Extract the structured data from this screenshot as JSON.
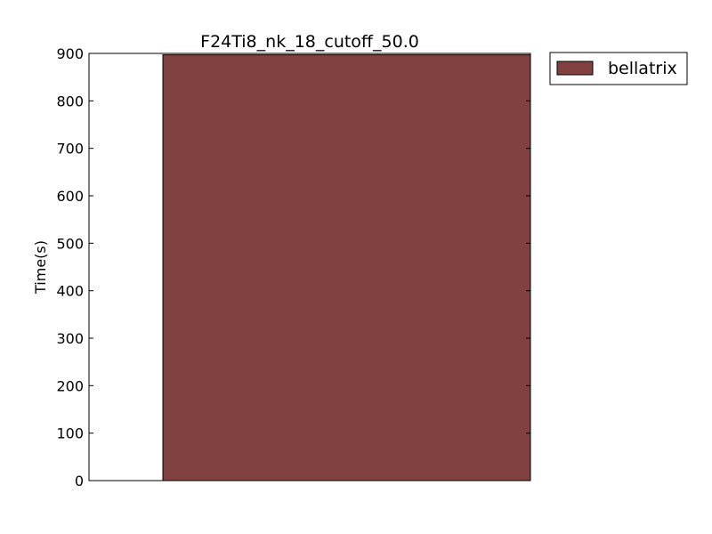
{
  "chart_data": {
    "type": "bar",
    "title": "F24Ti8_nk_18_cutoff_50.0",
    "xlabel": "",
    "ylabel": "Time(s)",
    "ylim": [
      0,
      900
    ],
    "yticks": [
      0,
      100,
      200,
      300,
      400,
      500,
      600,
      700,
      800,
      900
    ],
    "categories": [
      ""
    ],
    "series": [
      {
        "name": "bellatrix",
        "values": [
          897
        ],
        "color": "#824141"
      }
    ],
    "legend": "outside-top-right",
    "grid": false
  }
}
